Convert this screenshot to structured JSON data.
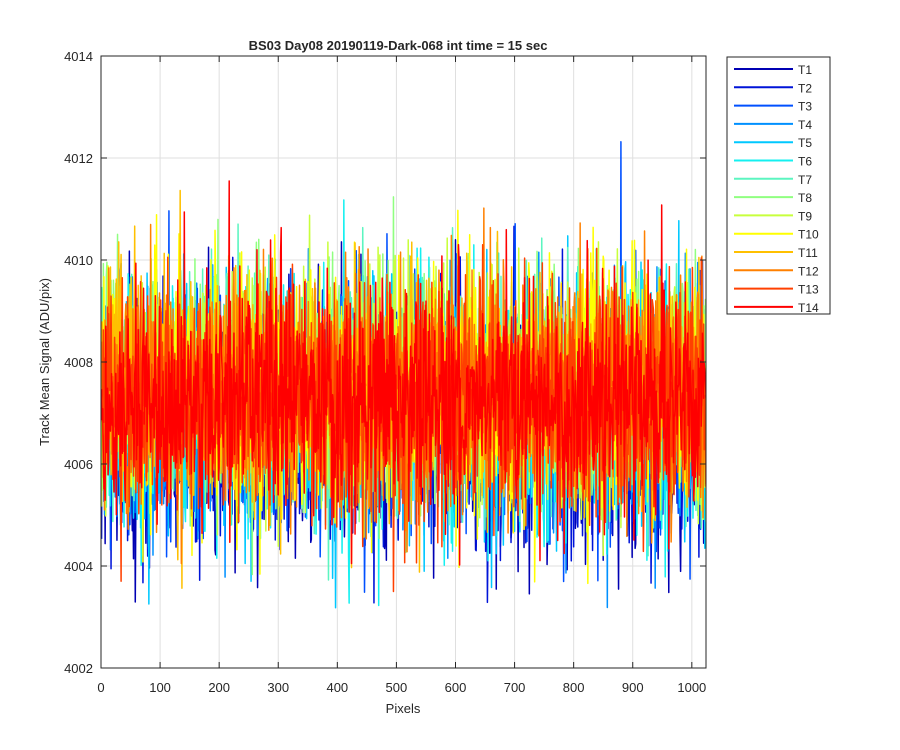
{
  "chart_data": {
    "type": "line",
    "title": "BS03 Day08 20190119-Dark-068 int time = 15 sec",
    "xlabel": "Pixels",
    "ylabel": "Track Mean Signal (ADU/pix)",
    "xlim": [
      0,
      1024
    ],
    "ylim": [
      4002,
      4014
    ],
    "xticks": [
      0,
      100,
      200,
      300,
      400,
      500,
      600,
      700,
      800,
      900,
      1000
    ],
    "yticks": [
      4002,
      4004,
      4006,
      4008,
      4010,
      4012,
      4014
    ],
    "grid": true,
    "legend_position": "outside-top-right",
    "series_summary": {
      "points_per_series": 1024,
      "x_range": [
        1,
        1024
      ],
      "typical_range": [
        4005,
        4010
      ],
      "center_value": 4007.3,
      "low_outliers_min": 4003.1,
      "high_outliers_max": 4013.1
    },
    "series": [
      {
        "name": "T1",
        "color": "#0000b3",
        "mean": 4006.7
      },
      {
        "name": "T2",
        "color": "#0014d8",
        "mean": 4006.8
      },
      {
        "name": "T3",
        "color": "#0050ff",
        "mean": 4006.9
      },
      {
        "name": "T4",
        "color": "#0090ff",
        "mean": 4007.1
      },
      {
        "name": "T5",
        "color": "#00c8ff",
        "mean": 4007.2
      },
      {
        "name": "T6",
        "color": "#14f0f0",
        "mean": 4007.3
      },
      {
        "name": "T7",
        "color": "#5cf5c0",
        "mean": 4007.4
      },
      {
        "name": "T8",
        "color": "#90ff80",
        "mean": 4007.5
      },
      {
        "name": "T9",
        "color": "#c8ff3c",
        "mean": 4007.5
      },
      {
        "name": "T10",
        "color": "#ffff00",
        "mean": 4007.5
      },
      {
        "name": "T11",
        "color": "#ffc000",
        "mean": 4007.4
      },
      {
        "name": "T12",
        "color": "#ff8000",
        "mean": 4007.4
      },
      {
        "name": "T13",
        "color": "#ff4000",
        "mean": 4007.3
      },
      {
        "name": "T14",
        "color": "#ff0000",
        "mean": 4007.3
      }
    ]
  }
}
